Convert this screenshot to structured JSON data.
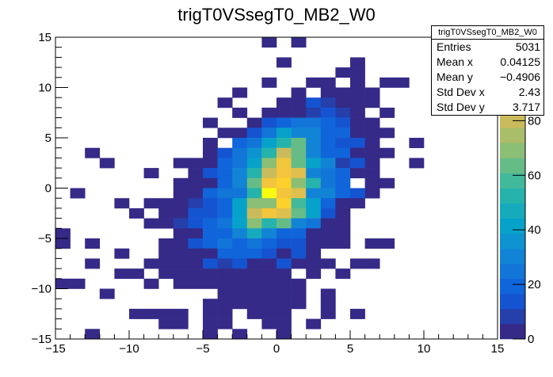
{
  "chart_data": {
    "type": "heatmap",
    "title": "trigT0VSsegT0_MB2_W0",
    "xlabel": "",
    "ylabel": "",
    "xlim": [
      -15,
      15
    ],
    "ylim": [
      -15,
      15
    ],
    "zlim": [
      0,
      110.6
    ],
    "bin_width_x": 1,
    "bin_width_y": 1,
    "x_ticks": [
      -15,
      -10,
      -5,
      0,
      5,
      10,
      15
    ],
    "x_tick_labels": [
      "−15",
      "−10",
      "−5",
      "0",
      "5",
      "10",
      "15"
    ],
    "y_ticks": [
      -15,
      -10,
      -5,
      0,
      5,
      10,
      15
    ],
    "y_tick_labels": [
      "−15",
      "−10",
      "−5",
      "0",
      "5",
      "10",
      "15"
    ],
    "z_ticks": [
      0,
      20,
      40,
      60,
      80
    ],
    "z_tick_labels": [
      "0",
      "20",
      "40",
      "60",
      "80"
    ],
    "palette": "kBird",
    "cells_format": "[x_low, y_low, entries]",
    "cells": [
      [
        -1,
        14,
        3
      ],
      [
        1,
        14,
        2
      ],
      [
        0,
        12,
        2
      ],
      [
        5,
        12,
        2
      ],
      [
        4,
        11,
        2
      ],
      [
        5,
        11,
        3
      ],
      [
        -1,
        10,
        2
      ],
      [
        2,
        10,
        3
      ],
      [
        3,
        10,
        3
      ],
      [
        5,
        10,
        2
      ],
      [
        7,
        10,
        2
      ],
      [
        8,
        10,
        2
      ],
      [
        -3,
        9,
        2
      ],
      [
        1,
        9,
        3
      ],
      [
        3,
        9,
        4
      ],
      [
        4,
        9,
        5
      ],
      [
        5,
        9,
        4
      ],
      [
        6,
        9,
        3
      ],
      [
        -4,
        8,
        2
      ],
      [
        0,
        8,
        4
      ],
      [
        1,
        8,
        5
      ],
      [
        2,
        8,
        12
      ],
      [
        3,
        8,
        10
      ],
      [
        4,
        8,
        5
      ],
      [
        5,
        8,
        4
      ],
      [
        6,
        8,
        3
      ],
      [
        -3,
        7,
        2
      ],
      [
        -1,
        7,
        4
      ],
      [
        0,
        7,
        5
      ],
      [
        1,
        7,
        5
      ],
      [
        2,
        7,
        6
      ],
      [
        3,
        7,
        16
      ],
      [
        4,
        7,
        6
      ],
      [
        5,
        7,
        5
      ],
      [
        7,
        7,
        2
      ],
      [
        -5,
        6,
        2
      ],
      [
        -2,
        6,
        5
      ],
      [
        -1,
        6,
        12
      ],
      [
        0,
        6,
        17
      ],
      [
        1,
        6,
        23
      ],
      [
        2,
        6,
        23
      ],
      [
        3,
        6,
        20
      ],
      [
        4,
        6,
        12
      ],
      [
        5,
        6,
        5
      ],
      [
        6,
        6,
        4
      ],
      [
        -4,
        5,
        4
      ],
      [
        -3,
        5,
        5
      ],
      [
        -2,
        5,
        12
      ],
      [
        -1,
        5,
        23
      ],
      [
        0,
        5,
        40
      ],
      [
        1,
        5,
        32
      ],
      [
        2,
        5,
        32
      ],
      [
        3,
        5,
        17
      ],
      [
        4,
        5,
        21
      ],
      [
        5,
        5,
        5
      ],
      [
        6,
        5,
        4
      ],
      [
        7,
        5,
        3
      ],
      [
        -5,
        4,
        2
      ],
      [
        -3,
        4,
        17
      ],
      [
        -2,
        4,
        23
      ],
      [
        -1,
        4,
        40
      ],
      [
        0,
        4,
        52
      ],
      [
        1,
        4,
        63
      ],
      [
        2,
        4,
        32
      ],
      [
        3,
        4,
        17
      ],
      [
        4,
        4,
        12
      ],
      [
        5,
        4,
        12
      ],
      [
        6,
        4,
        5
      ],
      [
        9,
        4,
        2
      ],
      [
        -13,
        3,
        2
      ],
      [
        -5,
        3,
        3
      ],
      [
        -4,
        3,
        12
      ],
      [
        -3,
        3,
        23
      ],
      [
        -2,
        3,
        37
      ],
      [
        -1,
        3,
        52
      ],
      [
        0,
        3,
        80
      ],
      [
        1,
        3,
        63
      ],
      [
        2,
        3,
        32
      ],
      [
        3,
        3,
        21
      ],
      [
        4,
        3,
        17
      ],
      [
        5,
        3,
        5
      ],
      [
        6,
        3,
        4
      ],
      [
        7,
        3,
        3
      ],
      [
        -12,
        2,
        2
      ],
      [
        -7,
        2,
        2
      ],
      [
        -6,
        2,
        3
      ],
      [
        -5,
        2,
        4
      ],
      [
        -4,
        2,
        17
      ],
      [
        -3,
        2,
        23
      ],
      [
        -2,
        2,
        40
      ],
      [
        -1,
        2,
        71
      ],
      [
        0,
        2,
        94
      ],
      [
        1,
        2,
        63
      ],
      [
        2,
        2,
        40
      ],
      [
        3,
        2,
        32
      ],
      [
        4,
        2,
        6
      ],
      [
        5,
        2,
        12
      ],
      [
        6,
        2,
        4
      ],
      [
        9,
        2,
        2
      ],
      [
        -9,
        1,
        2
      ],
      [
        -6,
        1,
        3
      ],
      [
        -5,
        1,
        12
      ],
      [
        -4,
        1,
        17
      ],
      [
        -3,
        1,
        32
      ],
      [
        -2,
        1,
        52
      ],
      [
        -1,
        1,
        80
      ],
      [
        0,
        1,
        92
      ],
      [
        1,
        1,
        83
      ],
      [
        2,
        1,
        32
      ],
      [
        3,
        1,
        23
      ],
      [
        4,
        1,
        17
      ],
      [
        5,
        1,
        5
      ],
      [
        6,
        1,
        4
      ],
      [
        -7,
        0,
        2
      ],
      [
        -6,
        0,
        4
      ],
      [
        -5,
        0,
        5
      ],
      [
        -4,
        0,
        17
      ],
      [
        -3,
        0,
        32
      ],
      [
        -2,
        0,
        63
      ],
      [
        -1,
        0,
        90
      ],
      [
        0,
        0,
        98
      ],
      [
        1,
        0,
        71
      ],
      [
        2,
        0,
        52
      ],
      [
        3,
        0,
        23
      ],
      [
        4,
        0,
        17
      ],
      [
        6,
        0,
        3
      ],
      [
        7,
        0,
        2
      ],
      [
        -14,
        -1,
        2
      ],
      [
        -7,
        -1,
        3
      ],
      [
        -6,
        -1,
        5
      ],
      [
        -5,
        -1,
        17
      ],
      [
        -4,
        -1,
        23
      ],
      [
        -3,
        -1,
        23
      ],
      [
        -2,
        -1,
        52
      ],
      [
        -1,
        -1,
        109
      ],
      [
        0,
        -1,
        94
      ],
      [
        1,
        -1,
        86
      ],
      [
        2,
        -1,
        32
      ],
      [
        3,
        -1,
        32
      ],
      [
        4,
        -1,
        17
      ],
      [
        5,
        -1,
        12
      ],
      [
        6,
        -1,
        4
      ],
      [
        -11,
        -2,
        2
      ],
      [
        -9,
        -2,
        2
      ],
      [
        -8,
        -2,
        3
      ],
      [
        -7,
        -2,
        4
      ],
      [
        -6,
        -2,
        6
      ],
      [
        -5,
        -2,
        12
      ],
      [
        -4,
        -2,
        17
      ],
      [
        -3,
        -2,
        40
      ],
      [
        -2,
        -2,
        71
      ],
      [
        -1,
        -2,
        71
      ],
      [
        0,
        -2,
        98
      ],
      [
        1,
        -2,
        58
      ],
      [
        2,
        -2,
        40
      ],
      [
        3,
        -2,
        21
      ],
      [
        4,
        -2,
        5
      ],
      [
        5,
        -2,
        4
      ],
      [
        -10,
        -3,
        2
      ],
      [
        -8,
        -3,
        3
      ],
      [
        -7,
        -3,
        5
      ],
      [
        -6,
        -3,
        12
      ],
      [
        -5,
        -3,
        12
      ],
      [
        -4,
        -3,
        21
      ],
      [
        -3,
        -3,
        40
      ],
      [
        -2,
        -3,
        80
      ],
      [
        -1,
        -3,
        92
      ],
      [
        0,
        -3,
        86
      ],
      [
        1,
        -3,
        63
      ],
      [
        2,
        -3,
        40
      ],
      [
        3,
        -3,
        12
      ],
      [
        4,
        -3,
        5
      ],
      [
        -9,
        -4,
        3
      ],
      [
        -8,
        -4,
        4
      ],
      [
        -7,
        -4,
        6
      ],
      [
        -6,
        -4,
        12
      ],
      [
        -5,
        -4,
        17
      ],
      [
        -4,
        -4,
        25
      ],
      [
        -3,
        -4,
        40
      ],
      [
        -2,
        -4,
        71
      ],
      [
        -1,
        -4,
        52
      ],
      [
        0,
        -4,
        63
      ],
      [
        1,
        -4,
        32
      ],
      [
        2,
        -4,
        23
      ],
      [
        3,
        -4,
        5
      ],
      [
        4,
        -4,
        4
      ],
      [
        -15,
        -5,
        2
      ],
      [
        -7,
        -5,
        4
      ],
      [
        -6,
        -5,
        5
      ],
      [
        -5,
        -5,
        17
      ],
      [
        -4,
        -5,
        17
      ],
      [
        -3,
        -5,
        29
      ],
      [
        -2,
        -5,
        46
      ],
      [
        -1,
        -5,
        32
      ],
      [
        0,
        -5,
        21
      ],
      [
        1,
        -5,
        21
      ],
      [
        2,
        -5,
        5
      ],
      [
        3,
        -5,
        4
      ],
      [
        4,
        -5,
        3
      ],
      [
        -15,
        -6,
        2
      ],
      [
        -13,
        -6,
        2
      ],
      [
        -8,
        -6,
        3
      ],
      [
        -7,
        -6,
        4
      ],
      [
        -6,
        -6,
        12
      ],
      [
        -5,
        -6,
        17
      ],
      [
        -4,
        -6,
        23
      ],
      [
        -3,
        -6,
        21
      ],
      [
        -2,
        -6,
        25
      ],
      [
        -1,
        -6,
        17
      ],
      [
        0,
        -6,
        12
      ],
      [
        1,
        -6,
        12
      ],
      [
        2,
        -6,
        5
      ],
      [
        3,
        -6,
        4
      ],
      [
        4,
        -6,
        3
      ],
      [
        6,
        -6,
        2
      ],
      [
        7,
        -6,
        2
      ],
      [
        -11,
        -7,
        2
      ],
      [
        -8,
        -7,
        3
      ],
      [
        -7,
        -7,
        4
      ],
      [
        -6,
        -7,
        5
      ],
      [
        -5,
        -7,
        5
      ],
      [
        -4,
        -7,
        17
      ],
      [
        -3,
        -7,
        17
      ],
      [
        -2,
        -7,
        17
      ],
      [
        -1,
        -7,
        12
      ],
      [
        0,
        -7,
        5
      ],
      [
        1,
        -7,
        12
      ],
      [
        2,
        -7,
        4
      ],
      [
        -13,
        -8,
        2
      ],
      [
        -9,
        -8,
        2
      ],
      [
        -8,
        -8,
        3
      ],
      [
        -7,
        -8,
        4
      ],
      [
        -6,
        -8,
        5
      ],
      [
        -5,
        -8,
        12
      ],
      [
        -4,
        -8,
        6
      ],
      [
        -3,
        -8,
        12
      ],
      [
        -2,
        -8,
        5
      ],
      [
        -1,
        -8,
        5
      ],
      [
        0,
        -8,
        12
      ],
      [
        1,
        -8,
        4
      ],
      [
        2,
        -8,
        3
      ],
      [
        3,
        -8,
        3
      ],
      [
        5,
        -8,
        2
      ],
      [
        6,
        -8,
        2
      ],
      [
        -11,
        -9,
        2
      ],
      [
        -10,
        -9,
        2
      ],
      [
        -8,
        -9,
        3
      ],
      [
        -7,
        -9,
        3
      ],
      [
        -6,
        -9,
        4
      ],
      [
        -5,
        -9,
        5
      ],
      [
        -4,
        -9,
        5
      ],
      [
        -3,
        -9,
        5
      ],
      [
        -2,
        -9,
        4
      ],
      [
        -1,
        -9,
        5
      ],
      [
        0,
        -9,
        4
      ],
      [
        2,
        -9,
        3
      ],
      [
        4,
        -9,
        2
      ],
      [
        -15,
        -10,
        2
      ],
      [
        -14,
        -10,
        2
      ],
      [
        -9,
        -10,
        2
      ],
      [
        -7,
        -10,
        3
      ],
      [
        -6,
        -10,
        3
      ],
      [
        -5,
        -10,
        4
      ],
      [
        -4,
        -10,
        4
      ],
      [
        -3,
        -10,
        5
      ],
      [
        -2,
        -10,
        4
      ],
      [
        -1,
        -10,
        4
      ],
      [
        0,
        -10,
        3
      ],
      [
        1,
        -10,
        3
      ],
      [
        -12,
        -11,
        2
      ],
      [
        -4,
        -11,
        3
      ],
      [
        -3,
        -11,
        3
      ],
      [
        -2,
        -11,
        4
      ],
      [
        -1,
        -11,
        3
      ],
      [
        0,
        -11,
        3
      ],
      [
        1,
        -11,
        2
      ],
      [
        3,
        -11,
        2
      ],
      [
        -5,
        -12,
        2
      ],
      [
        -4,
        -12,
        3
      ],
      [
        -3,
        -12,
        3
      ],
      [
        -2,
        -12,
        3
      ],
      [
        -1,
        -12,
        4
      ],
      [
        0,
        -12,
        3
      ],
      [
        1,
        -12,
        2
      ],
      [
        3,
        -12,
        2
      ],
      [
        -10,
        -13,
        2
      ],
      [
        -9,
        -13,
        2
      ],
      [
        -8,
        -13,
        2
      ],
      [
        -7,
        -13,
        2
      ],
      [
        -5,
        -13,
        3
      ],
      [
        -4,
        -13,
        3
      ],
      [
        -2,
        -13,
        3
      ],
      [
        -1,
        -13,
        3
      ],
      [
        0,
        -13,
        2
      ],
      [
        3,
        -13,
        2
      ],
      [
        5,
        -13,
        2
      ],
      [
        -8,
        -14,
        2
      ],
      [
        -7,
        -14,
        2
      ],
      [
        -5,
        -14,
        2
      ],
      [
        -4,
        -14,
        2
      ],
      [
        -1,
        -14,
        3
      ],
      [
        0,
        -14,
        2
      ],
      [
        2,
        -14,
        2
      ],
      [
        -13,
        -15,
        2
      ],
      [
        -5,
        -15,
        2
      ],
      [
        -3,
        -15,
        2
      ],
      [
        0,
        -15,
        2
      ]
    ]
  },
  "stats": {
    "title": "trigT0VSsegT0_MB2_W0",
    "rows": [
      {
        "label": "Entries",
        "value": "5031"
      },
      {
        "label": "Mean x",
        "value": "0.04125"
      },
      {
        "label": "Mean y",
        "value": "−0.4906"
      },
      {
        "label": "Std Dev x",
        "value": "2.43"
      },
      {
        "label": "Std Dev y",
        "value": "3.717"
      }
    ]
  }
}
